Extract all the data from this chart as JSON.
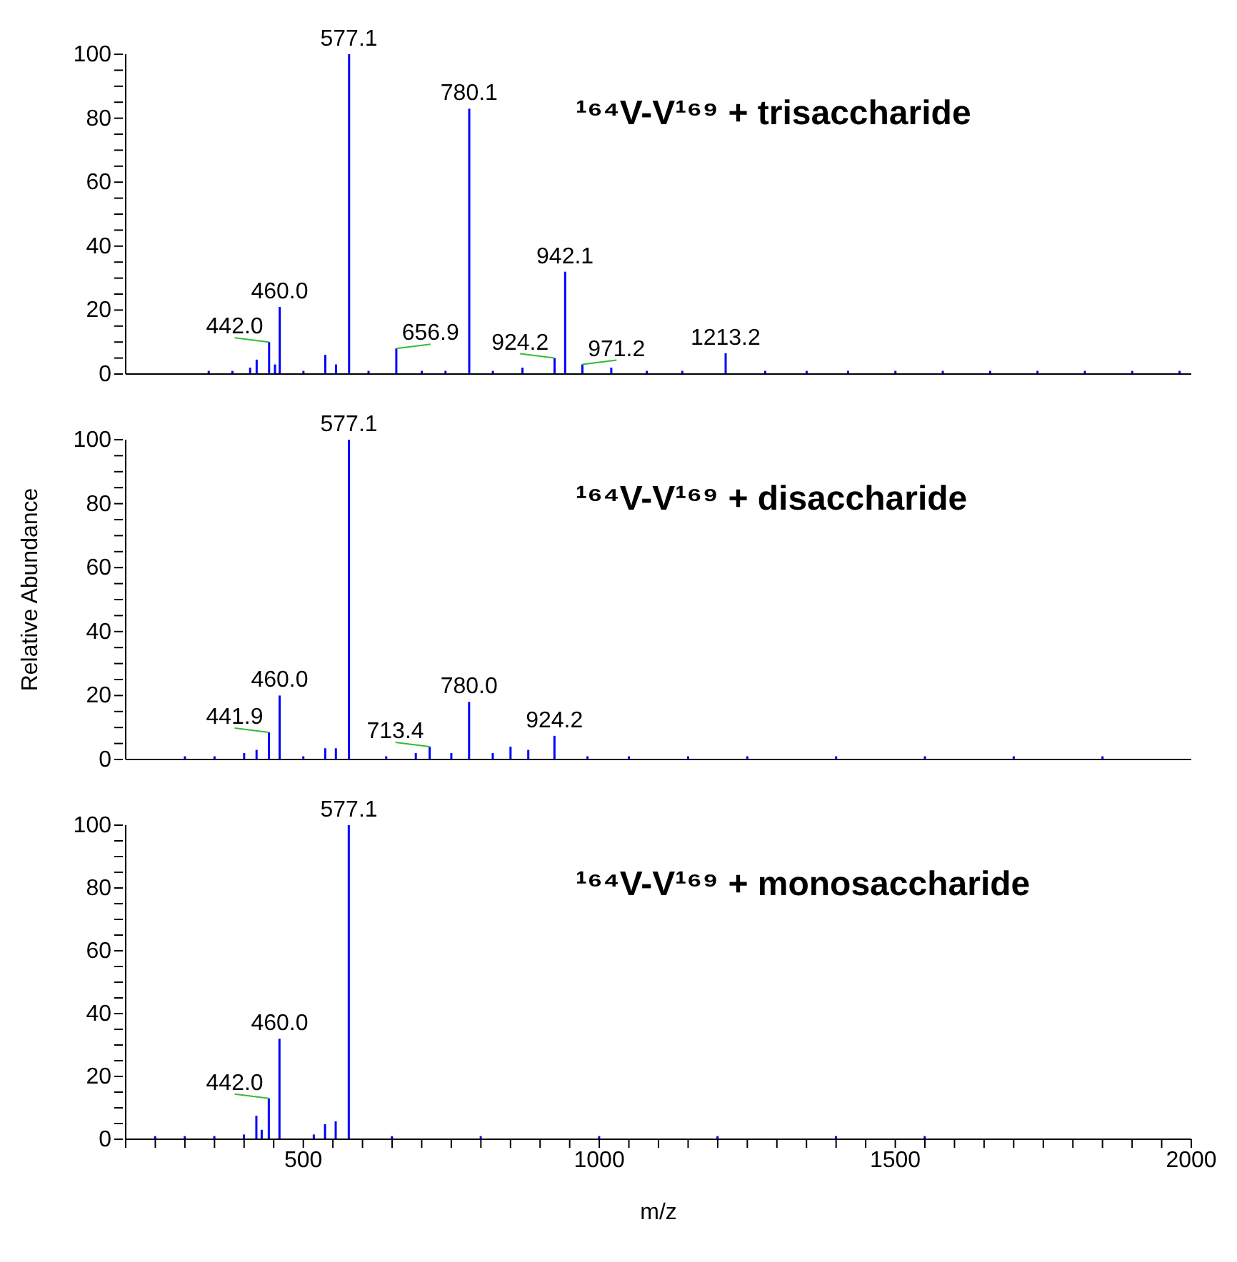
{
  "chart_data": [
    {
      "type": "bar",
      "title": "¹⁶⁴V-V¹⁶⁹ + trisaccharide",
      "color": "#0000ff",
      "xlim": [
        200,
        2000
      ],
      "ylim": [
        0,
        100
      ],
      "tick_labels": "y",
      "yticks": [
        0,
        {
          "value": 5,
          "label": null
        },
        {
          "value": 10,
          "label": null
        },
        {
          "value": 15,
          "label": null
        },
        20,
        {
          "value": 25,
          "label": null
        },
        {
          "value": 30,
          "label": null
        },
        {
          "value": 35,
          "label": null
        },
        40,
        {
          "value": 45,
          "label": null
        },
        {
          "value": 50,
          "label": null
        },
        {
          "value": 55,
          "label": null
        },
        60,
        {
          "value": 65,
          "label": null
        },
        {
          "value": 70,
          "label": null
        },
        {
          "value": 75,
          "label": null
        },
        80,
        {
          "value": 85,
          "label": null
        },
        {
          "value": 90,
          "label": null
        },
        {
          "value": 95,
          "label": null
        },
        100
      ],
      "x": [
        340,
        380,
        410,
        421,
        442.0,
        452,
        460.0,
        500,
        537,
        555,
        577.1,
        610,
        656.9,
        700,
        740,
        780.1,
        820,
        870,
        924.2,
        942.1,
        971.2,
        1020,
        1080,
        1140,
        1213.2,
        1280,
        1350,
        1420,
        1500,
        1580,
        1660,
        1740,
        1820,
        1900,
        1980
      ],
      "values": [
        1,
        1,
        2,
        4.5,
        10,
        3,
        21,
        1,
        6,
        3,
        100,
        1,
        8,
        1,
        1,
        83,
        1,
        2,
        5,
        32,
        3,
        2,
        1,
        1,
        6.5,
        1,
        1,
        1,
        1,
        1,
        1,
        1,
        1,
        1,
        1
      ],
      "annotations": [
        {
          "text": "442.0",
          "x": 442.0,
          "y": 10
        },
        {
          "text": "460.0",
          "x": 460.0,
          "y": 21
        },
        {
          "text": "577.1",
          "x": 577.1,
          "y": 100
        },
        {
          "text": "656.9",
          "x": 656.9,
          "y": 8
        },
        {
          "text": "780.1",
          "x": 780.1,
          "y": 83
        },
        {
          "text": "924.2",
          "x": 924.2,
          "y": 5
        },
        {
          "text": "942.1",
          "x": 942.1,
          "y": 32
        },
        {
          "text": "971.2",
          "x": 971.2,
          "y": 3
        },
        {
          "text": "1213.2",
          "x": 1213.2,
          "y": 6.5
        }
      ]
    },
    {
      "type": "bar",
      "title": "¹⁶⁴V-V¹⁶⁹ + disaccharide",
      "ylabel": "Relative Abundance",
      "color": "#0000ff",
      "xlim": [
        200,
        2000
      ],
      "ylim": [
        0,
        100
      ],
      "tick_labels": "y",
      "yticks": [
        0,
        {
          "value": 5,
          "label": null
        },
        {
          "value": 10,
          "label": null
        },
        {
          "value": 15,
          "label": null
        },
        20,
        {
          "value": 25,
          "label": null
        },
        {
          "value": 30,
          "label": null
        },
        {
          "value": 35,
          "label": null
        },
        40,
        {
          "value": 45,
          "label": null
        },
        {
          "value": 50,
          "label": null
        },
        {
          "value": 55,
          "label": null
        },
        60,
        {
          "value": 65,
          "label": null
        },
        {
          "value": 70,
          "label": null
        },
        {
          "value": 75,
          "label": null
        },
        80,
        {
          "value": 85,
          "label": null
        },
        {
          "value": 90,
          "label": null
        },
        {
          "value": 95,
          "label": null
        },
        100
      ],
      "x": [
        300,
        350,
        400,
        421,
        441.9,
        460.0,
        500,
        537,
        555,
        577.1,
        640,
        690,
        713.4,
        750,
        780.0,
        820,
        850,
        880,
        924.2,
        980,
        1050,
        1150,
        1250,
        1400,
        1550,
        1700,
        1850
      ],
      "values": [
        1,
        1,
        2,
        3,
        8.5,
        20,
        1,
        3.5,
        3.5,
        100,
        1,
        2,
        4,
        2,
        18,
        2,
        4,
        3,
        7.4,
        1,
        1,
        1,
        1,
        1,
        1,
        1,
        1
      ],
      "annotations": [
        {
          "text": "441.9",
          "x": 441.9,
          "y": 8.5
        },
        {
          "text": "460.0",
          "x": 460.0,
          "y": 20
        },
        {
          "text": "577.1",
          "x": 577.1,
          "y": 100
        },
        {
          "text": "713.4",
          "x": 713.4,
          "y": 4
        },
        {
          "text": "780.0",
          "x": 780.0,
          "y": 18
        },
        {
          "text": "924.2",
          "x": 924.2,
          "y": 7.4
        }
      ]
    },
    {
      "type": "bar",
      "title": "¹⁶⁴V-V¹⁶⁹ + monosaccharide",
      "xlabel": "m/z",
      "color": "#0000ff",
      "xlim": [
        200,
        2000
      ],
      "ylim": [
        0,
        100
      ],
      "yticks": [
        0,
        {
          "value": 5,
          "label": null
        },
        {
          "value": 10,
          "label": null
        },
        {
          "value": 15,
          "label": null
        },
        20,
        {
          "value": 25,
          "label": null
        },
        {
          "value": 30,
          "label": null
        },
        {
          "value": 35,
          "label": null
        },
        40,
        {
          "value": 45,
          "label": null
        },
        {
          "value": 50,
          "label": null
        },
        {
          "value": 55,
          "label": null
        },
        60,
        {
          "value": 65,
          "label": null
        },
        {
          "value": 70,
          "label": null
        },
        {
          "value": 75,
          "label": null
        },
        80,
        {
          "value": 85,
          "label": null
        },
        {
          "value": 90,
          "label": null
        },
        {
          "value": 95,
          "label": null
        },
        100
      ],
      "xticks": [
        {
          "value": 200,
          "label": null
        },
        {
          "value": 250,
          "label": null
        },
        {
          "value": 300,
          "label": null
        },
        {
          "value": 350,
          "label": null
        },
        {
          "value": 400,
          "label": null
        },
        {
          "value": 450,
          "label": null
        },
        500,
        {
          "value": 550,
          "label": null
        },
        {
          "value": 600,
          "label": null
        },
        {
          "value": 650,
          "label": null
        },
        {
          "value": 700,
          "label": null
        },
        {
          "value": 750,
          "label": null
        },
        {
          "value": 800,
          "label": null
        },
        {
          "value": 850,
          "label": null
        },
        {
          "value": 900,
          "label": null
        },
        {
          "value": 950,
          "label": null
        },
        1000,
        {
          "value": 1050,
          "label": null
        },
        {
          "value": 1100,
          "label": null
        },
        {
          "value": 1150,
          "label": null
        },
        {
          "value": 1200,
          "label": null
        },
        {
          "value": 1250,
          "label": null
        },
        {
          "value": 1300,
          "label": null
        },
        {
          "value": 1350,
          "label": null
        },
        {
          "value": 1400,
          "label": null
        },
        {
          "value": 1450,
          "label": null
        },
        1500,
        {
          "value": 1550,
          "label": null
        },
        {
          "value": 1600,
          "label": null
        },
        {
          "value": 1650,
          "label": null
        },
        {
          "value": 1700,
          "label": null
        },
        {
          "value": 1750,
          "label": null
        },
        {
          "value": 1800,
          "label": null
        },
        {
          "value": 1850,
          "label": null
        },
        {
          "value": 1900,
          "label": null
        },
        {
          "value": 1950,
          "label": null
        },
        2000
      ],
      "x": [
        250,
        300,
        350,
        400,
        421,
        430,
        442.0,
        460.0,
        518,
        537,
        555,
        577.1,
        650,
        800,
        1000,
        1200,
        1400,
        1550
      ],
      "values": [
        1,
        1,
        1,
        1.5,
        7.5,
        3,
        13,
        32,
        1.5,
        4.8,
        5.7,
        100,
        1,
        1,
        1,
        1,
        1,
        1
      ],
      "annotations": [
        {
          "text": "442.0",
          "x": 442.0,
          "y": 13
        },
        {
          "text": "460.0",
          "x": 460.0,
          "y": 32
        },
        {
          "text": "577.1",
          "x": 577.1,
          "y": 100
        }
      ]
    }
  ]
}
